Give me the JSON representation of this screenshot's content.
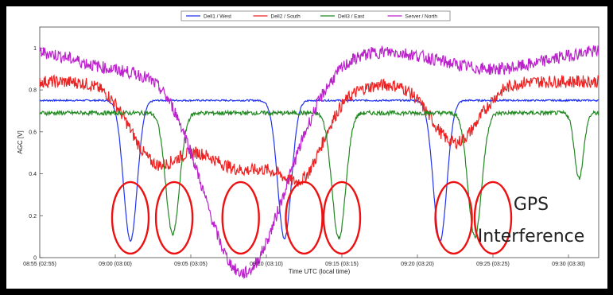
{
  "chart_data": {
    "type": "line",
    "title": "",
    "xlabel": "Time UTC (local time)",
    "ylabel": "AGC [V]",
    "x_ticks": [
      "08:55 (02:55)",
      "09:00 (03:00)",
      "09:05 (03:05)",
      "09:10 (03:10)",
      "09:15 (03:15)",
      "09:20 (03:20)",
      "09:25 (03:25)",
      "09:30 (03:30)"
    ],
    "x_tick_values": [
      0,
      5,
      10,
      15,
      20,
      25,
      30,
      35
    ],
    "xlim": [
      0,
      37
    ],
    "y_ticks": [
      "0",
      "0.2",
      "0.4",
      "0.6",
      "0.8",
      "1"
    ],
    "y_tick_values": [
      0,
      0.2,
      0.4,
      0.6,
      0.8,
      1.0
    ],
    "ylim": [
      0,
      1.1
    ],
    "grid": false,
    "legend_position": "top",
    "series": [
      {
        "name": "Dell1 / West",
        "color": "#2233ee",
        "baseline": 0.75,
        "dips": [
          [
            6.0,
            0.08,
            0.45
          ],
          [
            16.2,
            0.09,
            0.45
          ],
          [
            26.5,
            0.08,
            0.45
          ]
        ],
        "noise": 0.004
      },
      {
        "name": "Dell2 / South",
        "color": "#ee2222",
        "baseline": 0.84,
        "dips": [
          [
            7.5,
            0.55,
            1.6
          ],
          [
            13.5,
            0.42,
            3.5
          ],
          [
            17.5,
            0.6,
            1.3
          ],
          [
            27.5,
            0.55,
            1.6
          ]
        ],
        "noise": 0.03
      },
      {
        "name": "Dell3 / East",
        "color": "#228822",
        "baseline": 0.69,
        "dips": [
          [
            8.8,
            0.11,
            0.45
          ],
          [
            19.8,
            0.09,
            0.45
          ],
          [
            28.8,
            0.1,
            0.45
          ],
          [
            35.7,
            0.38,
            0.3
          ]
        ],
        "noise": 0.01
      },
      {
        "name": "Server / North",
        "color": "#bb22cc",
        "baseline": 1.0,
        "dips": [
          [
            5.5,
            0.9,
            3
          ],
          [
            13,
            0.08,
            2.5
          ],
          [
            16,
            0.72,
            2.5
          ],
          [
            30,
            0.9,
            3.5
          ]
        ],
        "noise": 0.03
      }
    ],
    "annotation": [
      "GPS",
      "Interference"
    ],
    "highlight_color": "#ee1111",
    "highlights": [
      {
        "x": 6.0,
        "y": 0.19
      },
      {
        "x": 8.9,
        "y": 0.19
      },
      {
        "x": 13.3,
        "y": 0.19
      },
      {
        "x": 17.5,
        "y": 0.19
      },
      {
        "x": 20.0,
        "y": 0.19
      },
      {
        "x": 27.4,
        "y": 0.19
      },
      {
        "x": 30.0,
        "y": 0.19
      }
    ]
  }
}
